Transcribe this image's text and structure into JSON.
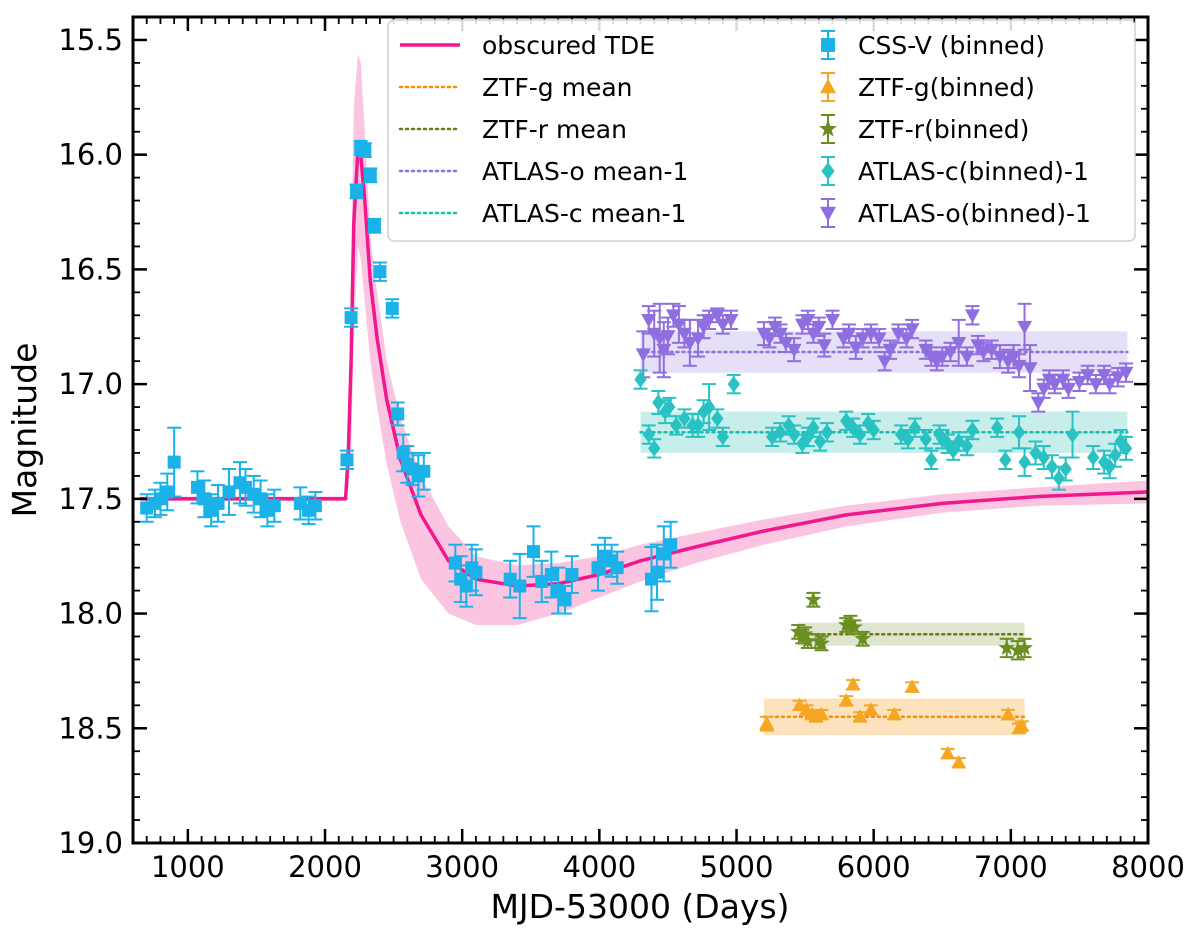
{
  "chart_data": {
    "type": "scatter",
    "title": "",
    "xlabel": "MJD-53000 (Days)",
    "ylabel": "Magnitude",
    "xlim": [
      600,
      8000
    ],
    "ylim": [
      19.0,
      15.4
    ],
    "y_inverted": true,
    "x_ticks": [
      1000,
      2000,
      3000,
      4000,
      5000,
      6000,
      7000,
      8000
    ],
    "x_tick_labels": [
      "1000",
      "2000",
      "3000",
      "4000",
      "5000",
      "6000",
      "7000",
      "8000"
    ],
    "y_ticks": [
      15.5,
      16.0,
      16.5,
      17.0,
      17.5,
      18.0,
      18.5,
      19.0
    ],
    "y_tick_labels": [
      "15.5",
      "16.0",
      "16.5",
      "17.0",
      "17.5",
      "18.0",
      "18.5",
      "19.0"
    ],
    "legend_position": "top-right",
    "series": [
      {
        "name": "obscured TDE",
        "kind": "model",
        "color": "#f0188c",
        "band_color": "#fbc4e0",
        "x": [
          650,
          2150,
          2170,
          2190,
          2210,
          2240,
          2260,
          2290,
          2330,
          2380,
          2450,
          2550,
          2700,
          2900,
          3100,
          3400,
          3700,
          4000,
          4300,
          4700,
          5200,
          5800,
          6500,
          7200,
          8000
        ],
        "y": [
          17.5,
          17.5,
          17.3,
          16.9,
          16.3,
          15.98,
          16.0,
          16.2,
          16.55,
          16.8,
          17.07,
          17.33,
          17.57,
          17.77,
          17.85,
          17.88,
          17.87,
          17.83,
          17.77,
          17.71,
          17.64,
          17.57,
          17.52,
          17.49,
          17.47
        ],
        "band_low": [
          17.49,
          17.49,
          17.2,
          16.5,
          15.8,
          15.56,
          15.6,
          15.9,
          16.35,
          16.6,
          16.9,
          17.15,
          17.4,
          17.62,
          17.75,
          17.79,
          17.78,
          17.75,
          17.7,
          17.65,
          17.59,
          17.53,
          17.48,
          17.45,
          17.42
        ],
        "band_high": [
          17.51,
          17.51,
          17.45,
          17.3,
          16.8,
          16.4,
          16.45,
          16.65,
          16.9,
          17.1,
          17.35,
          17.6,
          17.85,
          18.0,
          18.05,
          18.05,
          18.0,
          17.93,
          17.86,
          17.78,
          17.7,
          17.62,
          17.56,
          17.53,
          17.52
        ]
      },
      {
        "name": "ZTF-g mean",
        "kind": "mean",
        "color": "#ff8c00",
        "band_color": "#fde3bd",
        "x_range": [
          5200,
          7100
        ],
        "value": 18.45,
        "band": [
          18.37,
          18.53
        ]
      },
      {
        "name": "ZTF-r mean",
        "kind": "mean",
        "color": "#6b7a1a",
        "band_color": "#dfe5cf",
        "x_range": [
          5450,
          7100
        ],
        "value": 18.09,
        "band": [
          18.04,
          18.14
        ]
      },
      {
        "name": "ATLAS-o mean-1",
        "kind": "mean",
        "color": "#8a70e0",
        "band_color": "#e6dff8",
        "x_range": [
          4300,
          7850
        ],
        "value": 16.86,
        "band": [
          16.77,
          16.95
        ]
      },
      {
        "name": "ATLAS-c mean-1",
        "kind": "mean",
        "color": "#12c0b0",
        "band_color": "#c8eeeb",
        "x_range": [
          4300,
          7850
        ],
        "value": 17.21,
        "band": [
          17.12,
          17.3
        ]
      },
      {
        "name": "CSS-V (binned)",
        "kind": "points",
        "marker": "square",
        "color": "#1ab2e8",
        "x": [
          700,
          760,
          800,
          850,
          900,
          1070,
          1120,
          1170,
          1220,
          1300,
          1380,
          1420,
          1480,
          1530,
          1580,
          1630,
          1820,
          1880,
          1930,
          2160,
          2190,
          2230,
          2260,
          2290,
          2330,
          2360,
          2400,
          2490,
          2530,
          2570,
          2600,
          2640,
          2680,
          2720,
          2950,
          2990,
          3030,
          3070,
          3100,
          3350,
          3420,
          3520,
          3580,
          3650,
          3700,
          3750,
          3800,
          3990,
          4040,
          4090,
          4130,
          4380,
          4420,
          4470,
          4520
        ],
        "y": [
          17.54,
          17.52,
          17.5,
          17.47,
          17.34,
          17.45,
          17.5,
          17.55,
          17.52,
          17.47,
          17.43,
          17.45,
          17.48,
          17.5,
          17.55,
          17.53,
          17.52,
          17.55,
          17.53,
          17.33,
          16.71,
          16.16,
          15.97,
          15.98,
          16.09,
          16.31,
          16.51,
          16.67,
          17.13,
          17.3,
          17.35,
          17.37,
          17.4,
          17.38,
          17.78,
          17.85,
          17.88,
          17.8,
          17.82,
          17.85,
          17.88,
          17.73,
          17.86,
          17.83,
          17.9,
          17.94,
          17.83,
          17.8,
          17.75,
          17.77,
          17.8,
          17.85,
          17.82,
          17.74,
          17.7
        ],
        "err": [
          0.06,
          0.06,
          0.07,
          0.08,
          0.15,
          0.07,
          0.08,
          0.07,
          0.08,
          0.1,
          0.09,
          0.08,
          0.08,
          0.08,
          0.07,
          0.07,
          0.07,
          0.06,
          0.06,
          0.04,
          0.04,
          0.03,
          0.03,
          0.03,
          0.03,
          0.03,
          0.04,
          0.04,
          0.05,
          0.08,
          0.08,
          0.07,
          0.09,
          0.08,
          0.08,
          0.1,
          0.09,
          0.1,
          0.1,
          0.08,
          0.14,
          0.11,
          0.09,
          0.1,
          0.1,
          0.06,
          0.08,
          0.1,
          0.08,
          0.07,
          0.07,
          0.14,
          0.12,
          0.12,
          0.1
        ]
      },
      {
        "name": "ZTF-g(binned)",
        "kind": "points",
        "marker": "triangle-up",
        "color": "#f5a623",
        "x": [
          5220,
          5460,
          5510,
          5550,
          5580,
          5620,
          5800,
          5850,
          5900,
          5980,
          6150,
          6280,
          6540,
          6620,
          6980,
          7060,
          7080
        ],
        "y": [
          18.48,
          18.4,
          18.42,
          18.44,
          18.45,
          18.44,
          18.38,
          18.31,
          18.45,
          18.42,
          18.44,
          18.32,
          18.61,
          18.65,
          18.44,
          18.5,
          18.49
        ],
        "err": [
          0.03,
          0.02,
          0.02,
          0.02,
          0.02,
          0.02,
          0.02,
          0.02,
          0.02,
          0.02,
          0.02,
          0.02,
          0.02,
          0.02,
          0.02,
          0.02,
          0.02
        ]
      },
      {
        "name": "ZTF-r(binned)",
        "kind": "points",
        "marker": "star",
        "color": "#6b8e23",
        "x": [
          5450,
          5480,
          5500,
          5520,
          5560,
          5600,
          5620,
          5800,
          5830,
          5860,
          5920,
          6970,
          7050,
          7100
        ],
        "y": [
          18.08,
          18.1,
          18.09,
          18.12,
          17.94,
          18.12,
          18.13,
          18.05,
          18.04,
          18.06,
          18.11,
          18.15,
          18.16,
          18.15
        ],
        "err": [
          0.03,
          0.03,
          0.03,
          0.03,
          0.03,
          0.03,
          0.03,
          0.03,
          0.03,
          0.03,
          0.03,
          0.04,
          0.04,
          0.04
        ]
      },
      {
        "name": "ATLAS-c(binned)-1",
        "kind": "points",
        "marker": "diamond",
        "color": "#28c2c2",
        "x": [
          4300,
          4360,
          4400,
          4430,
          4480,
          4510,
          4560,
          4620,
          4680,
          4720,
          4760,
          4800,
          4860,
          4900,
          4980,
          5260,
          5320,
          5380,
          5420,
          5480,
          5520,
          5560,
          5610,
          5660,
          5800,
          5850,
          5900,
          5960,
          6000,
          6200,
          6250,
          6300,
          6380,
          6420,
          6480,
          6500,
          6540,
          6580,
          6620,
          6680,
          6720,
          6900,
          6960,
          7060,
          7100,
          7180,
          7240,
          7300,
          7350,
          7400,
          7450,
          7600,
          7680,
          7720,
          7760,
          7800,
          7840
        ],
        "y": [
          16.98,
          17.22,
          17.28,
          17.08,
          17.12,
          17.1,
          17.18,
          17.15,
          17.18,
          17.18,
          17.12,
          17.1,
          17.15,
          17.23,
          17.0,
          17.23,
          17.21,
          17.18,
          17.22,
          17.26,
          17.23,
          17.19,
          17.25,
          17.21,
          17.16,
          17.19,
          17.22,
          17.17,
          17.2,
          17.22,
          17.24,
          17.19,
          17.24,
          17.33,
          17.22,
          17.24,
          17.26,
          17.29,
          17.25,
          17.27,
          17.2,
          17.19,
          17.33,
          17.21,
          17.34,
          17.3,
          17.32,
          17.36,
          17.41,
          17.37,
          17.22,
          17.32,
          17.34,
          17.36,
          17.31,
          17.25,
          17.28
        ],
        "err": [
          0.04,
          0.04,
          0.04,
          0.05,
          0.05,
          0.04,
          0.04,
          0.04,
          0.05,
          0.05,
          0.05,
          0.1,
          0.04,
          0.04,
          0.04,
          0.04,
          0.04,
          0.04,
          0.04,
          0.04,
          0.04,
          0.04,
          0.04,
          0.04,
          0.04,
          0.04,
          0.04,
          0.04,
          0.04,
          0.04,
          0.04,
          0.04,
          0.04,
          0.04,
          0.04,
          0.04,
          0.04,
          0.04,
          0.04,
          0.04,
          0.04,
          0.04,
          0.04,
          0.07,
          0.06,
          0.05,
          0.05,
          0.05,
          0.05,
          0.05,
          0.1,
          0.05,
          0.05,
          0.05,
          0.05,
          0.05,
          0.05
        ]
      },
      {
        "name": "ATLAS-o(binned)-1",
        "kind": "points",
        "marker": "triangle-down",
        "color": "#8f6fe0",
        "x": [
          4320,
          4360,
          4400,
          4440,
          4470,
          4500,
          4540,
          4580,
          4620,
          4660,
          4720,
          4760,
          4800,
          4860,
          4900,
          4960,
          5200,
          5240,
          5280,
          5320,
          5360,
          5420,
          5480,
          5520,
          5560,
          5600,
          5640,
          5700,
          5780,
          5820,
          5870,
          5920,
          5980,
          6040,
          6080,
          6120,
          6180,
          6240,
          6280,
          6380,
          6420,
          6460,
          6500,
          6560,
          6620,
          6680,
          6720,
          6760,
          6800,
          6860,
          6920,
          6980,
          7020,
          7060,
          7100,
          7140,
          7200,
          7240,
          7280,
          7320,
          7380,
          7420,
          7500,
          7560,
          7620,
          7680,
          7720,
          7780,
          7840
        ],
        "y": [
          16.87,
          16.72,
          16.78,
          16.8,
          16.85,
          16.79,
          16.7,
          16.74,
          16.78,
          16.82,
          16.8,
          16.75,
          16.72,
          16.7,
          16.74,
          16.72,
          16.78,
          16.8,
          16.75,
          16.78,
          16.82,
          16.85,
          16.74,
          16.72,
          16.78,
          16.75,
          16.83,
          16.72,
          16.8,
          16.78,
          16.84,
          16.8,
          16.78,
          16.8,
          16.9,
          16.85,
          16.78,
          16.8,
          16.76,
          16.85,
          16.88,
          16.9,
          16.88,
          16.86,
          16.82,
          16.88,
          16.7,
          16.83,
          16.86,
          16.85,
          16.88,
          16.9,
          16.88,
          16.92,
          16.75,
          16.93,
          17.08,
          17.02,
          16.98,
          17.0,
          16.98,
          17.02,
          16.99,
          16.96,
          17.0,
          16.96,
          17.0,
          16.97,
          16.95
        ],
        "err": [
          0.1,
          0.06,
          0.1,
          0.15,
          0.12,
          0.08,
          0.05,
          0.08,
          0.06,
          0.1,
          0.08,
          0.05,
          0.04,
          0.03,
          0.04,
          0.04,
          0.05,
          0.04,
          0.04,
          0.04,
          0.04,
          0.05,
          0.04,
          0.04,
          0.04,
          0.04,
          0.05,
          0.04,
          0.04,
          0.04,
          0.05,
          0.04,
          0.04,
          0.04,
          0.04,
          0.04,
          0.04,
          0.04,
          0.04,
          0.04,
          0.04,
          0.04,
          0.04,
          0.04,
          0.1,
          0.04,
          0.04,
          0.04,
          0.04,
          0.04,
          0.05,
          0.05,
          0.05,
          0.05,
          0.1,
          0.1,
          0.04,
          0.04,
          0.04,
          0.04,
          0.04,
          0.04,
          0.04,
          0.04,
          0.04,
          0.04,
          0.04,
          0.04,
          0.04
        ]
      }
    ]
  }
}
